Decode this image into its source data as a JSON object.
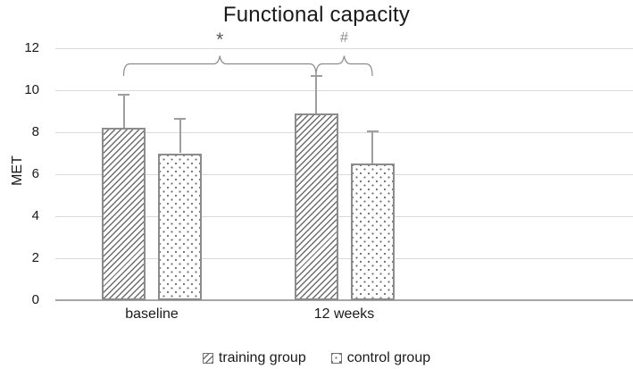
{
  "chart_data": {
    "type": "bar",
    "title": "Functional capacity",
    "xlabel": "",
    "ylabel": "MET",
    "categories": [
      "baseline",
      "12 weeks"
    ],
    "series": [
      {
        "name": "training group",
        "pattern": "diagonal-hatch",
        "values": [
          8.2,
          8.9
        ],
        "errors_plus": [
          1.6,
          1.8
        ]
      },
      {
        "name": "control group",
        "pattern": "dots",
        "values": [
          7.0,
          6.5
        ],
        "errors_plus": [
          1.65,
          1.55
        ]
      }
    ],
    "ylim": [
      0,
      12
    ],
    "yticks": [
      0,
      2,
      4,
      6,
      8,
      10,
      12
    ],
    "grid": true,
    "legend_position": "bottom",
    "annotations": [
      {
        "symbol": "*",
        "from": {
          "category": 0,
          "series": 0
        },
        "to": {
          "category": 1,
          "series": 0
        }
      },
      {
        "symbol": "#",
        "from": {
          "category": 1,
          "series": 0
        },
        "to": {
          "category": 1,
          "series": 1
        }
      }
    ]
  },
  "colors": {
    "text": "#1a1a1a",
    "pattern_fg": "#6e6e6e",
    "bar_border": "#8c8c8c",
    "error_bar": "#9e9e9e",
    "gridline": "#d9d9d9",
    "axis_line": "#a6a6a6",
    "bracket": "#8c8c8c",
    "star": "#595959",
    "hash": "#8c8c8c"
  }
}
